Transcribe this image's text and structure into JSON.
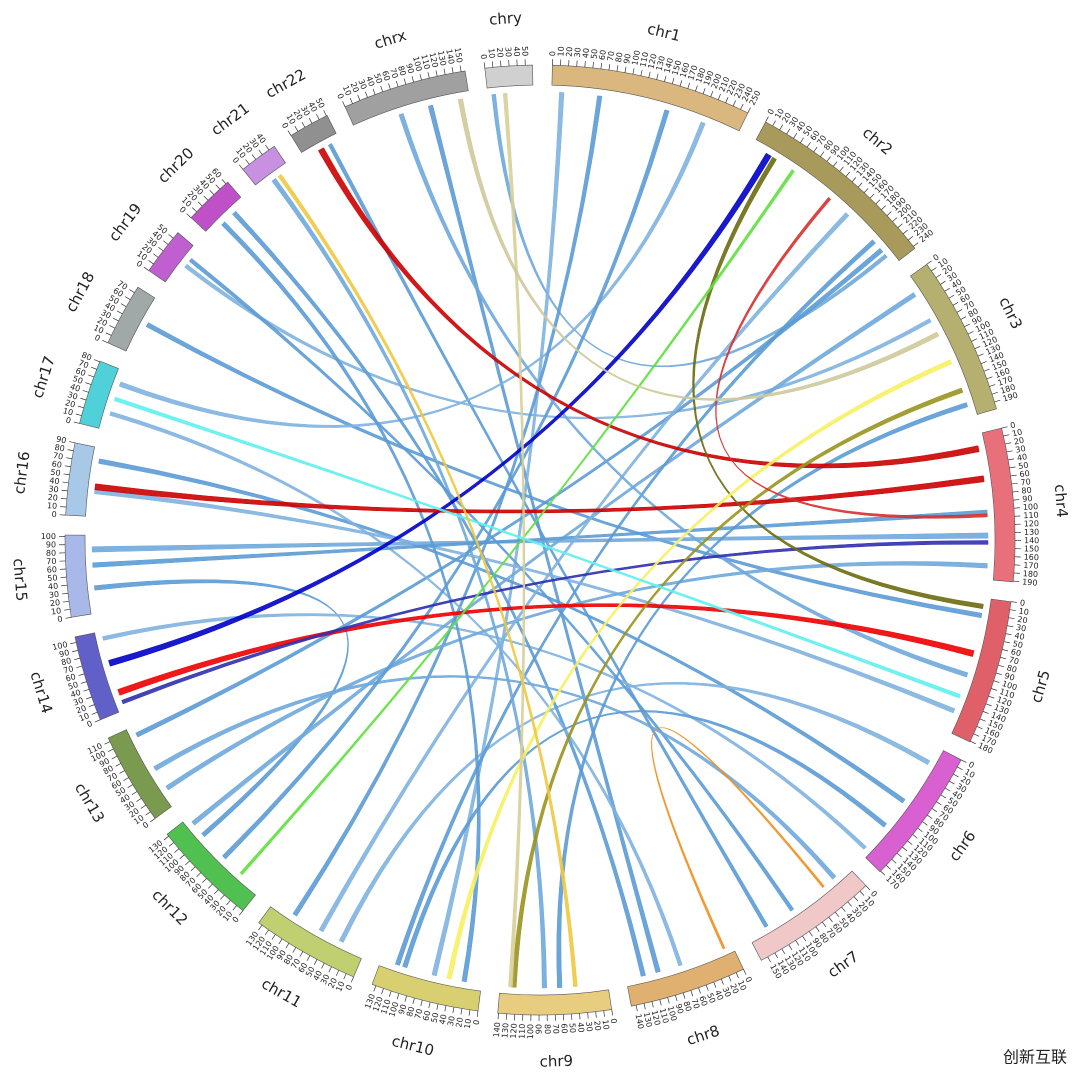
{
  "chart_data": {
    "type": "circos",
    "chromosomes": [
      {
        "name": "chr1",
        "length": 250,
        "color": "#d9b77e",
        "ticks": [
          0,
          10,
          20,
          30,
          40,
          50,
          60,
          70,
          80,
          90,
          100,
          110,
          120,
          130,
          140,
          150,
          160,
          170,
          180,
          190,
          200,
          210,
          220,
          230,
          240,
          250
        ]
      },
      {
        "name": "chr2",
        "length": 243,
        "color": "#a89a5a",
        "ticks": [
          0,
          10,
          20,
          30,
          40,
          50,
          60,
          70,
          80,
          90,
          100,
          110,
          120,
          130,
          140,
          150,
          160,
          170,
          180,
          190,
          200,
          210,
          220,
          230,
          240
        ]
      },
      {
        "name": "chr3",
        "length": 199,
        "color": "#b5b070",
        "ticks": [
          0,
          10,
          20,
          30,
          40,
          50,
          60,
          70,
          80,
          90,
          100,
          110,
          120,
          130,
          140,
          150,
          160,
          170,
          180,
          190
        ]
      },
      {
        "name": "chr4",
        "length": 191,
        "color": "#e8707a",
        "ticks": [
          0,
          10,
          20,
          30,
          40,
          50,
          60,
          70,
          80,
          90,
          100,
          110,
          120,
          130,
          140,
          150,
          160,
          170,
          180,
          190
        ]
      },
      {
        "name": "chr5",
        "length": 181,
        "color": "#e0606a",
        "ticks": [
          0,
          10,
          20,
          30,
          40,
          50,
          60,
          70,
          80,
          90,
          100,
          110,
          120,
          130,
          140,
          150,
          160,
          170,
          180
        ]
      },
      {
        "name": "chr6",
        "length": 171,
        "color": "#d860d0",
        "ticks": [
          0,
          10,
          20,
          30,
          40,
          50,
          60,
          70,
          80,
          90,
          100,
          110,
          120,
          130,
          140,
          150,
          160,
          170
        ]
      },
      {
        "name": "chr7",
        "length": 159,
        "color": "#f0c8c8",
        "ticks": [
          0,
          10,
          20,
          30,
          40,
          50,
          60,
          70,
          80,
          90,
          100,
          110,
          120,
          130,
          140,
          150
        ]
      },
      {
        "name": "chr8",
        "length": 146,
        "color": "#e0b070",
        "ticks": [
          0,
          10,
          20,
          30,
          40,
          50,
          60,
          70,
          80,
          90,
          100,
          110,
          120,
          130,
          140
        ]
      },
      {
        "name": "chr9",
        "length": 141,
        "color": "#e8cc80",
        "ticks": [
          0,
          10,
          20,
          30,
          40,
          50,
          60,
          70,
          80,
          90,
          100,
          110,
          120,
          130,
          140
        ]
      },
      {
        "name": "chr10",
        "length": 135,
        "color": "#d8d070",
        "ticks": [
          0,
          10,
          20,
          30,
          40,
          50,
          60,
          70,
          80,
          90,
          100,
          110,
          120,
          130
        ]
      },
      {
        "name": "chr11",
        "length": 135,
        "color": "#c0d070",
        "ticks": [
          0,
          10,
          20,
          30,
          40,
          50,
          60,
          70,
          80,
          90,
          100,
          110,
          120,
          130
        ]
      },
      {
        "name": "chr12",
        "length": 133,
        "color": "#50c050",
        "ticks": [
          0,
          10,
          20,
          30,
          40,
          50,
          60,
          70,
          80,
          90,
          100,
          110,
          120,
          130
        ]
      },
      {
        "name": "chr13",
        "length": 115,
        "color": "#7a9a50",
        "ticks": [
          0,
          10,
          20,
          30,
          40,
          50,
          60,
          70,
          80,
          90,
          100,
          110
        ]
      },
      {
        "name": "chr14",
        "length": 107,
        "color": "#6060c8",
        "ticks": [
          0,
          10,
          20,
          30,
          40,
          50,
          60,
          70,
          80,
          90,
          100
        ]
      },
      {
        "name": "chr15",
        "length": 102,
        "color": "#a8b8e8",
        "ticks": [
          0,
          10,
          20,
          30,
          40,
          50,
          60,
          70,
          80,
          90,
          100
        ]
      },
      {
        "name": "chr16",
        "length": 90,
        "color": "#a8c8e8",
        "ticks": [
          0,
          10,
          20,
          30,
          40,
          50,
          60,
          70,
          80,
          90
        ]
      },
      {
        "name": "chr17",
        "length": 81,
        "color": "#50d0d8",
        "ticks": [
          0,
          10,
          20,
          30,
          40,
          50,
          60,
          70,
          80
        ]
      },
      {
        "name": "chr18",
        "length": 78,
        "color": "#a0a8a8",
        "ticks": [
          0,
          10,
          20,
          30,
          40,
          50,
          60,
          70
        ]
      },
      {
        "name": "chr19",
        "length": 59,
        "color": "#c060d0",
        "ticks": [
          0,
          10,
          20,
          30,
          40,
          50
        ]
      },
      {
        "name": "chr20",
        "length": 63,
        "color": "#c050c8",
        "ticks": [
          0,
          10,
          20,
          30,
          40,
          50,
          60
        ]
      },
      {
        "name": "chr21",
        "length": 48,
        "color": "#c890e0",
        "ticks": [
          0,
          10,
          20,
          30,
          40
        ]
      },
      {
        "name": "chr22",
        "length": 51,
        "color": "#909090",
        "ticks": [
          0,
          10,
          20,
          30,
          40,
          50
        ]
      },
      {
        "name": "chrx",
        "length": 155,
        "color": "#a0a0a0",
        "ticks": [
          0,
          10,
          20,
          30,
          40,
          50,
          60,
          70,
          80,
          90,
          100,
          110,
          120,
          130,
          140,
          150
        ]
      },
      {
        "name": "chry",
        "length": 59,
        "color": "#d0d0d0",
        "ticks": [
          0,
          10,
          20,
          30,
          40,
          50
        ]
      }
    ],
    "links": [
      {
        "from": "chrx",
        "from_pos": 100,
        "to": "chr8",
        "to_pos": 100,
        "width": 6,
        "color": "#5b9bd5"
      },
      {
        "from": "chry",
        "from_pos": 5,
        "to": "chr2",
        "to_pos": 225,
        "width": 5,
        "color": "#6fa8dc"
      },
      {
        "from": "chr1",
        "from_pos": 10,
        "to": "chr10",
        "to_pos": 60,
        "width": 6,
        "color": "#7fb2e0"
      },
      {
        "from": "chr22",
        "from_pos": 35,
        "to": "chr7",
        "to_pos": 130,
        "width": 5,
        "color": "#5b9bd5"
      },
      {
        "from": "chr19",
        "from_pos": 30,
        "to": "chr3",
        "to_pos": 60,
        "width": 5,
        "color": "#7fb2e0"
      },
      {
        "from": "chr18",
        "from_pos": 40,
        "to": "chr5",
        "to_pos": 20,
        "width": 6,
        "color": "#5b9bd5"
      },
      {
        "from": "chr17",
        "from_pos": 60,
        "to": "chr1",
        "to_pos": 200,
        "width": 6,
        "color": "#7fb2e0"
      },
      {
        "from": "chr16",
        "from_pos": 70,
        "to": "chr6",
        "to_pos": 80,
        "width": 6,
        "color": "#5b9bd5"
      },
      {
        "from": "chr15",
        "from_pos": 80,
        "to": "chr4",
        "to_pos": 130,
        "width": 7,
        "color": "#6fa8dc"
      },
      {
        "from": "chr15",
        "from_pos": 30,
        "to": "chr12",
        "to_pos": 100,
        "width": 6,
        "color": "#5b9bd5"
      },
      {
        "from": "chr14",
        "from_pos": 95,
        "to": "chr6",
        "to_pos": 160,
        "width": 5,
        "color": "#7fb2e0"
      },
      {
        "from": "chr13",
        "from_pos": 100,
        "to": "chr2",
        "to_pos": 215,
        "width": 6,
        "color": "#5b9bd5"
      },
      {
        "from": "chr12",
        "from_pos": 120,
        "to": "chr3",
        "to_pos": 20,
        "width": 6,
        "color": "#6fa8dc"
      },
      {
        "from": "chr11",
        "from_pos": 100,
        "to": "chr1",
        "to_pos": 60,
        "width": 6,
        "color": "#5b9bd5"
      },
      {
        "from": "chr11",
        "from_pos": 30,
        "to": "chr6",
        "to_pos": 20,
        "width": 6,
        "color": "#7fb2e0"
      },
      {
        "from": "chr10",
        "from_pos": 110,
        "to": "chr2",
        "to_pos": 200,
        "width": 6,
        "color": "#5b9bd5"
      },
      {
        "from": "chr9",
        "from_pos": 80,
        "to": "chr21",
        "to_pos": 20,
        "width": 6,
        "color": "#6fa8dc"
      },
      {
        "from": "chr8",
        "from_pos": 120,
        "to": "chr20",
        "to_pos": 40,
        "width": 6,
        "color": "#5b9bd5"
      },
      {
        "from": "chr8",
        "from_pos": 70,
        "to": "chr17",
        "to_pos": 20,
        "width": 5,
        "color": "#7fb2e0"
      },
      {
        "from": "chr7",
        "from_pos": 90,
        "to": "chr19",
        "to_pos": 40,
        "width": 5,
        "color": "#5b9bd5"
      },
      {
        "from": "chr7",
        "from_pos": 20,
        "to": "chr13",
        "to_pos": 50,
        "width": 6,
        "color": "#6fa8dc"
      },
      {
        "from": "chr6",
        "from_pos": 120,
        "to": "chr10",
        "to_pos": 100,
        "width": 6,
        "color": "#5b9bd5"
      },
      {
        "from": "chr5",
        "from_pos": 150,
        "to": "chr16",
        "to_pos": 30,
        "width": 6,
        "color": "#7fb2e0"
      },
      {
        "from": "chr4",
        "from_pos": 100,
        "to": "chr15",
        "to_pos": 60,
        "width": 6,
        "color": "#5b9bd5"
      },
      {
        "from": "chr4",
        "from_pos": 170,
        "to": "chr13",
        "to_pos": 20,
        "width": 6,
        "color": "#6fa8dc"
      },
      {
        "from": "chr3",
        "from_pos": 180,
        "to": "chr9",
        "to_pos": 60,
        "width": 6,
        "color": "#5b9bd5"
      },
      {
        "from": "chr2",
        "from_pos": 150,
        "to": "chr11",
        "to_pos": 60,
        "width": 6,
        "color": "#7fb2e0"
      },
      {
        "from": "chr1",
        "from_pos": 150,
        "to": "chr12",
        "to_pos": 60,
        "width": 6,
        "color": "#5b9bd5"
      },
      {
        "from": "chrx",
        "from_pos": 60,
        "to": "chr5",
        "to_pos": 100,
        "width": 6,
        "color": "#6fa8dc"
      },
      {
        "from": "chr20",
        "from_pos": 20,
        "to": "chr10",
        "to_pos": 20,
        "width": 6,
        "color": "#5b9bd5"
      },
      {
        "from": "chr2",
        "from_pos": 20,
        "to": "chr14",
        "to_pos": 60,
        "width": 8,
        "color": "#0000c8"
      },
      {
        "from": "chr22",
        "from_pos": 20,
        "to": "chr4",
        "to_pos": 15,
        "width": 8,
        "color": "#cc0000"
      },
      {
        "from": "chr16",
        "from_pos": 35,
        "to": "chr4",
        "to_pos": 55,
        "width": 8,
        "color": "#cc0000"
      },
      {
        "from": "chr14",
        "from_pos": 20,
        "to": "chr5",
        "to_pos": 70,
        "width": 8,
        "color": "#ee0000"
      },
      {
        "from": "chr14",
        "from_pos": 8,
        "to": "chr4",
        "to_pos": 140,
        "width": 5,
        "color": "#3030b0"
      },
      {
        "from": "chr2",
        "from_pos": 30,
        "to": "chr5",
        "to_pos": 8,
        "width": 6,
        "color": "#6b6b10"
      },
      {
        "from": "chr3",
        "from_pos": 160,
        "to": "chr9",
        "to_pos": 120,
        "width": 6,
        "color": "#9a9420"
      },
      {
        "from": "chr3",
        "from_pos": 120,
        "to": "chr10",
        "to_pos": 40,
        "width": 6,
        "color": "#f8f060"
      },
      {
        "from": "chr2",
        "from_pos": 60,
        "to": "chr12",
        "to_pos": 30,
        "width": 4,
        "color": "#60e040"
      },
      {
        "from": "chr2",
        "from_pos": 120,
        "to": "chr4",
        "to_pos": 105,
        "width": 4,
        "color": "#d83030"
      },
      {
        "from": "chry",
        "from_pos": 20,
        "to": "chr9",
        "to_pos": 125,
        "width": 5,
        "color": "#d8cf98"
      },
      {
        "from": "chrx",
        "from_pos": 140,
        "to": "chr3",
        "to_pos": 80,
        "width": 6,
        "color": "#cfc99a"
      },
      {
        "from": "chr17",
        "from_pos": 40,
        "to": "chr5",
        "to_pos": 130,
        "width": 5,
        "color": "#60f0f0"
      },
      {
        "from": "chr7",
        "from_pos": 40,
        "to": "chr8",
        "to_pos": 10,
        "width": 3,
        "color": "#f09020"
      },
      {
        "from": "chr21",
        "from_pos": 30,
        "to": "chr9",
        "to_pos": 40,
        "width": 5,
        "color": "#f0c840"
      }
    ],
    "watermark": "创新互联"
  }
}
